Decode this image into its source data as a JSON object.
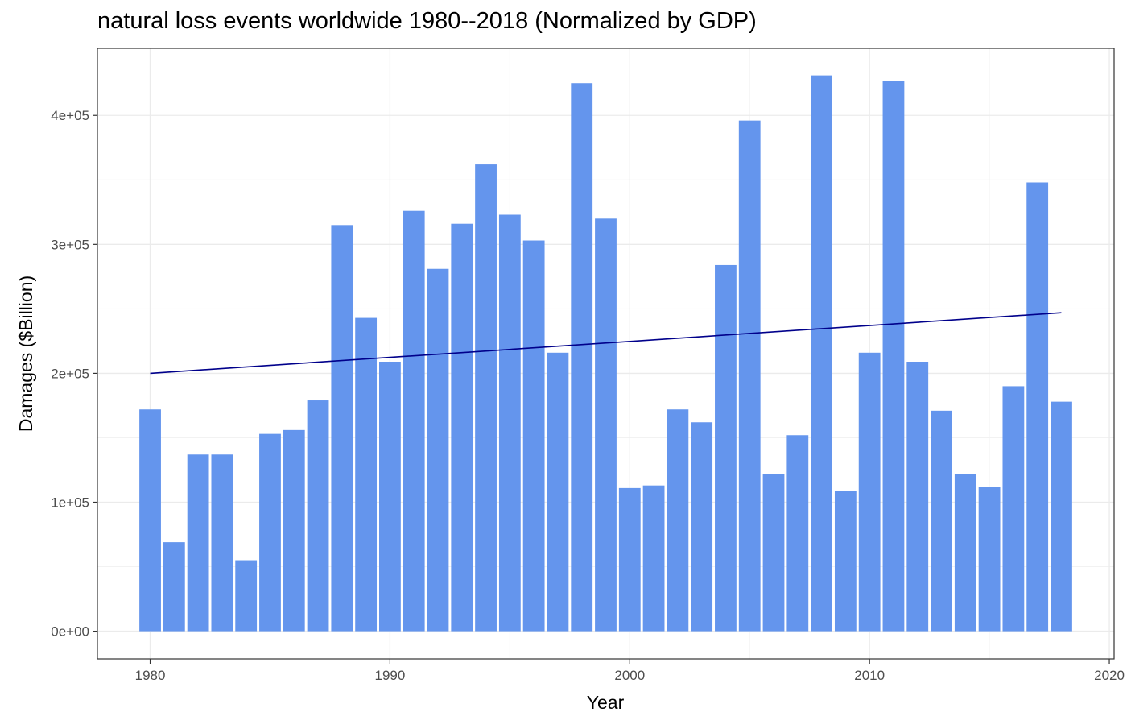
{
  "chart_data": {
    "type": "bar",
    "title": "natural loss events worldwide 1980--2018 (Normalized by GDP)",
    "xlabel": "Year",
    "ylabel": "Damages ($Billion)",
    "x": [
      1980,
      1981,
      1982,
      1983,
      1984,
      1985,
      1986,
      1987,
      1988,
      1989,
      1990,
      1991,
      1992,
      1993,
      1994,
      1995,
      1996,
      1997,
      1998,
      1999,
      2000,
      2001,
      2002,
      2003,
      2004,
      2005,
      2006,
      2007,
      2008,
      2009,
      2010,
      2011,
      2012,
      2013,
      2014,
      2015,
      2016,
      2017,
      2018
    ],
    "values": [
      172000,
      69000,
      137000,
      137000,
      55000,
      153000,
      156000,
      179000,
      315000,
      243000,
      209000,
      326000,
      281000,
      316000,
      362000,
      323000,
      303000,
      216000,
      425000,
      320000,
      111000,
      113000,
      172000,
      162000,
      284000,
      396000,
      122000,
      152000,
      431000,
      109000,
      216000,
      427000,
      209000,
      171000,
      122000,
      112000,
      190000,
      348000,
      178000
    ],
    "trend": {
      "x": [
        1980,
        2018
      ],
      "y": [
        200000,
        247000
      ]
    },
    "xlim": [
      1977.8,
      2020.2
    ],
    "ylim": [
      -21500,
      452000
    ],
    "xticks": [
      1980,
      1990,
      2000,
      2010,
      2020
    ],
    "xtick_labels": [
      "1980",
      "1990",
      "2000",
      "2010",
      "2020"
    ],
    "yticks": [
      0,
      100000,
      200000,
      300000,
      400000
    ],
    "ytick_labels": [
      "0e+00",
      "1e+05",
      "2e+05",
      "3e+05",
      "4e+05"
    ],
    "grid": true,
    "legend": "none",
    "bar_color": "#6495ED",
    "trend_color": "#00008B"
  }
}
